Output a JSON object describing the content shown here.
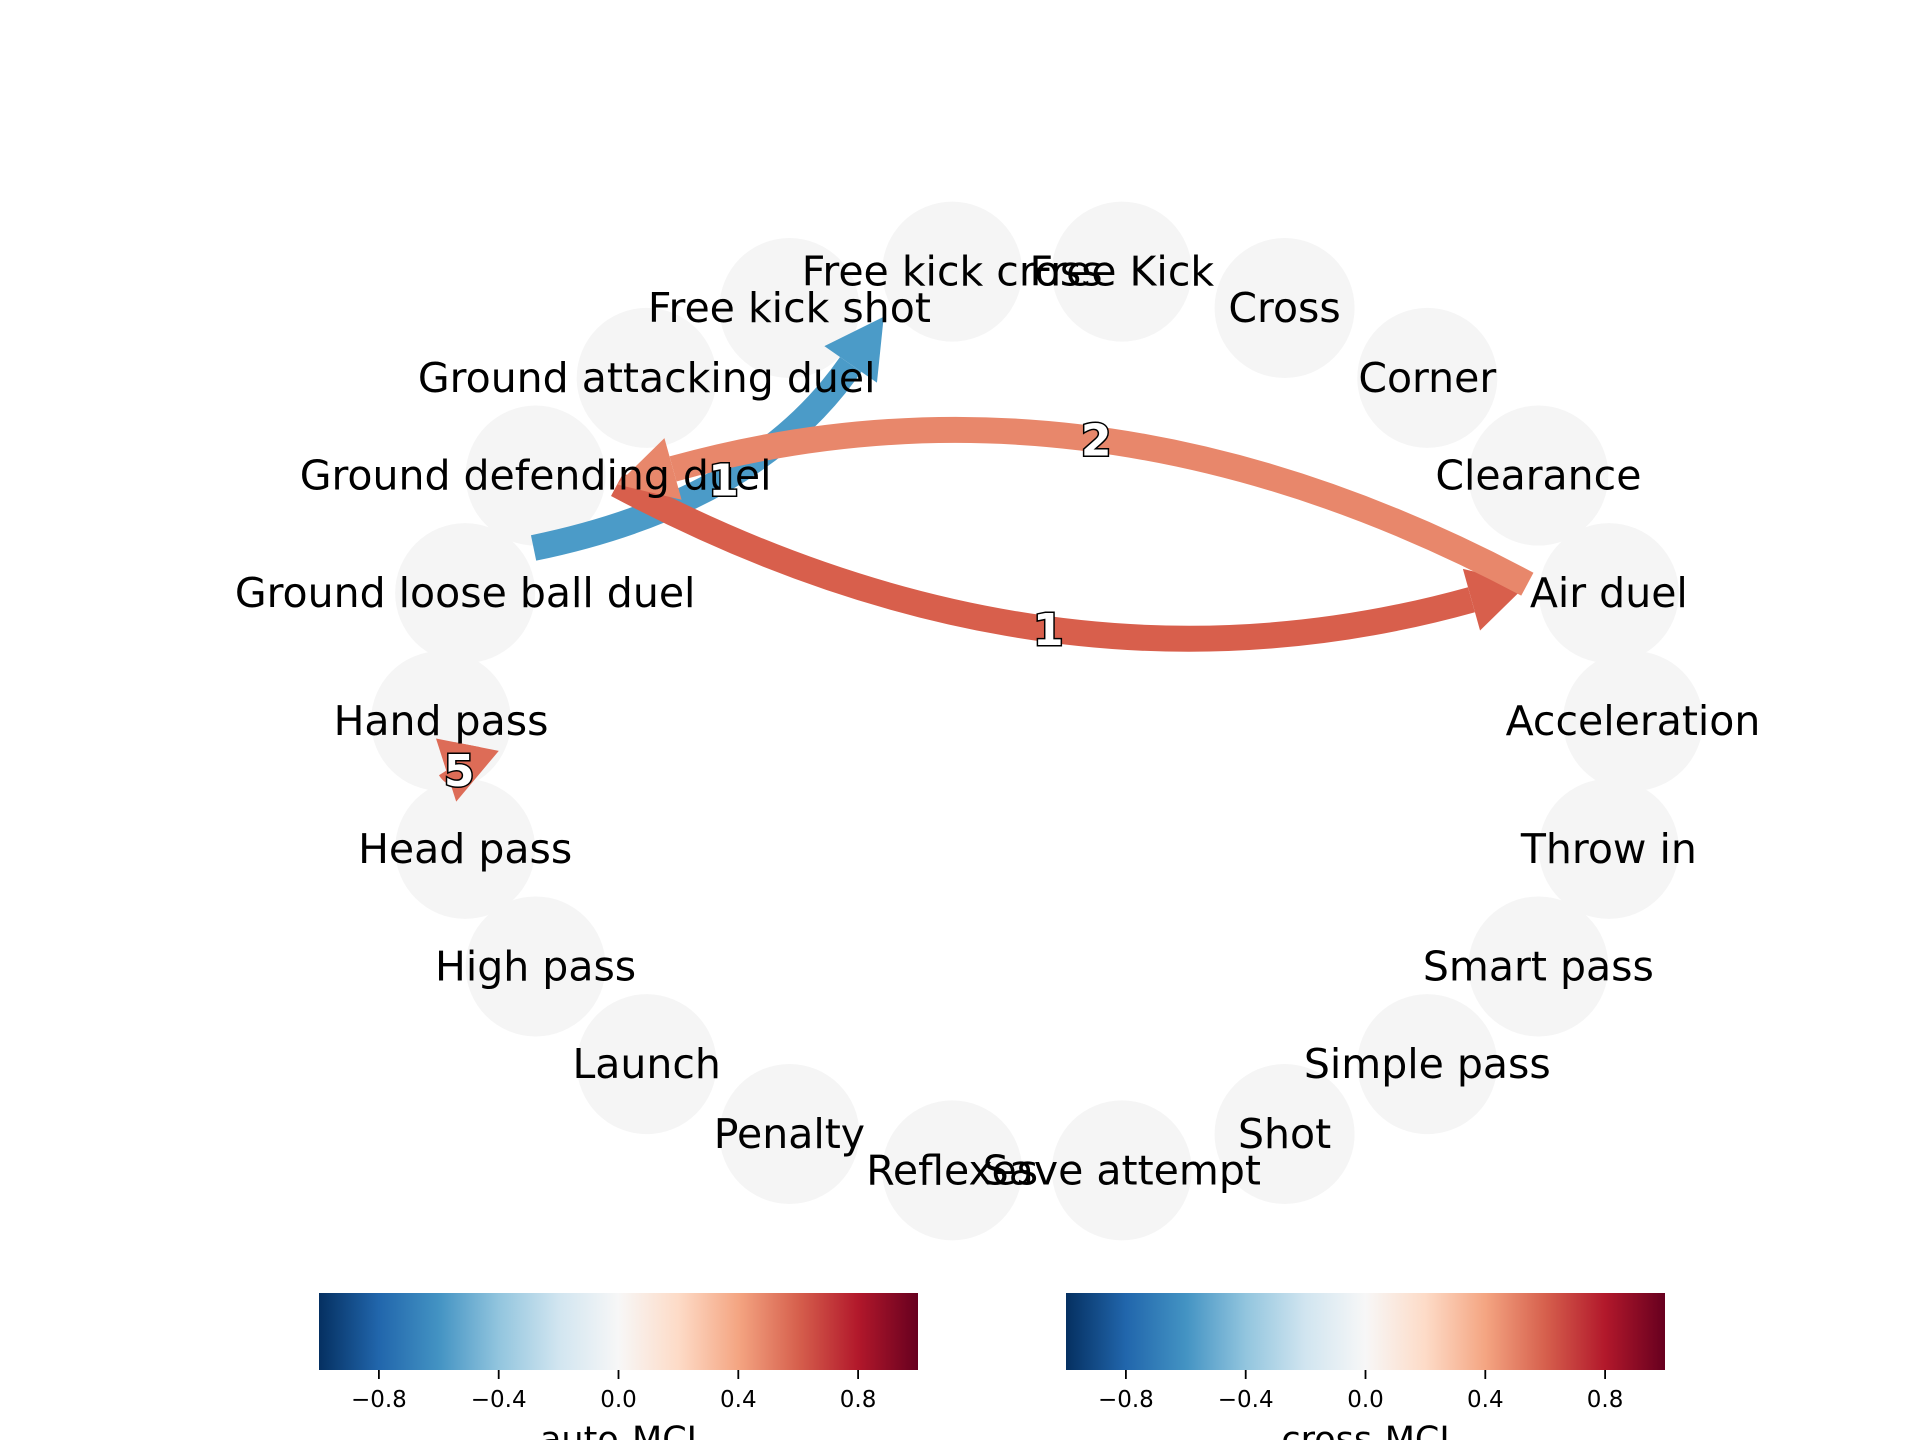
{
  "nodes": [
    "Free Kick",
    "Cross",
    "Corner",
    "Clearance",
    "Air duel",
    "Acceleration",
    "Throw in",
    "Smart pass",
    "Simple pass",
    "Shot",
    "Save attempt",
    "Reflexes",
    "Penalty",
    "Launch",
    "High pass",
    "Head pass",
    "Hand pass",
    "Ground loose ball duel",
    "Ground defending duel",
    "Ground attacking duel",
    "Free kick shot",
    "Free kick cross"
  ],
  "edges": [
    {
      "source": "Ground loose ball duel",
      "target": "Free kick cross",
      "label": "1",
      "value": -0.62,
      "color": "#4b9bc8"
    },
    {
      "source": "Ground defending duel",
      "target": "Air duel",
      "label": "1",
      "value": 0.62,
      "color": "#d85f4c"
    },
    {
      "source": "Air duel",
      "target": "Ground defending duel",
      "label": "2",
      "value": 0.45,
      "color": "#e8876b"
    },
    {
      "source": "Head pass",
      "target": "Hand pass",
      "label": "5",
      "value": 0.58,
      "color": "#dd6c57"
    }
  ],
  "colorbars": [
    {
      "title": "auto-MCI",
      "range": [
        -1,
        1
      ],
      "ticks": [
        "−0.8",
        "−0.4",
        "0.0",
        "0.4",
        "0.8"
      ],
      "tick_values": [
        -0.8,
        -0.4,
        0.0,
        0.4,
        0.8
      ],
      "colormap": "RdBu_r"
    },
    {
      "title": "cross-MCI",
      "range": [
        -1,
        1
      ],
      "ticks": [
        "−0.8",
        "−0.4",
        "0.0",
        "0.4",
        "0.8"
      ],
      "tick_values": [
        -0.8,
        -0.4,
        0.0,
        0.4,
        0.8
      ],
      "colormap": "RdBu_r"
    }
  ],
  "colors": {
    "node_fill": "#f5f5f5"
  }
}
